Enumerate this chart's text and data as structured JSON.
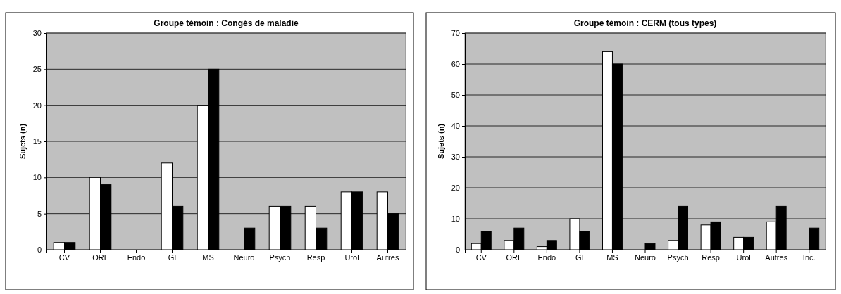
{
  "chart_data": [
    {
      "type": "bar",
      "title": "Groupe témoin : Congés de maladie",
      "ylabel": "Sujets (n)",
      "categories": [
        "CV",
        "ORL",
        "Endo",
        "GI",
        "MS",
        "Neuro",
        "Psych",
        "Resp",
        "Urol",
        "Autres"
      ],
      "series": [
        {
          "color": "#ffffff",
          "values": [
            1,
            10,
            0,
            12,
            20,
            0,
            6,
            6,
            8,
            8
          ]
        },
        {
          "color": "#000000",
          "values": [
            1,
            9,
            0,
            6,
            25,
            3,
            6,
            3,
            8,
            5
          ]
        }
      ],
      "ylim": [
        0,
        30
      ],
      "yticks": [
        0,
        5,
        10,
        15,
        20,
        25,
        30
      ],
      "grid": "y"
    },
    {
      "type": "bar",
      "title": "Groupe témoin : CERM (tous types)",
      "ylabel": "Sujets (n)",
      "categories": [
        "CV",
        "ORL",
        "Endo",
        "GI",
        "MS",
        "Neuro",
        "Psych",
        "Resp",
        "Urol",
        "Autres",
        "Inc."
      ],
      "series": [
        {
          "color": "#ffffff",
          "values": [
            2,
            3,
            1,
            10,
            64,
            0,
            3,
            8,
            4,
            9,
            0
          ]
        },
        {
          "color": "#000000",
          "values": [
            6,
            7,
            3,
            6,
            60,
            2,
            14,
            9,
            4,
            14,
            7
          ]
        }
      ],
      "ylim": [
        0,
        70
      ],
      "yticks": [
        0,
        10,
        20,
        30,
        40,
        50,
        60,
        70
      ],
      "grid": "y"
    }
  ]
}
